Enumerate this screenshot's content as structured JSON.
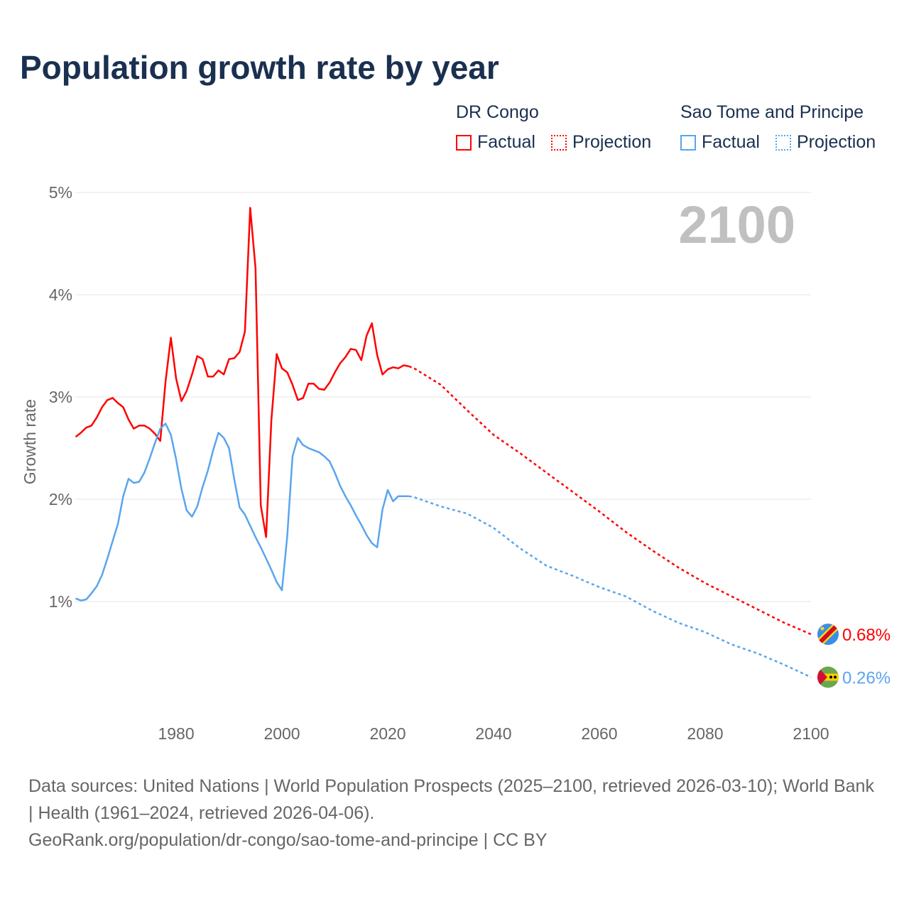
{
  "title": "Population growth rate by year",
  "legend": {
    "groups": [
      {
        "name": "DR Congo",
        "color": "#ff0000",
        "factual": "Factual",
        "projection": "Projection"
      },
      {
        "name": "Sao Tome and Principe",
        "color": "#5aa5ee",
        "factual": "Factual",
        "projection": "Projection"
      }
    ]
  },
  "year_label": "2100",
  "footer": {
    "sources": "Data sources: United Nations | World Population Prospects (2025–2100, retrieved 2026-03-10); World Bank | Health (1961–2024, retrieved 2026-04-06).",
    "link": "GeoRank.org/population/dr-congo/sao-tome-and-principe | CC BY"
  },
  "chart_data": {
    "type": "line",
    "title": "Population growth rate by year",
    "xlabel": "",
    "ylabel": "Growth rate",
    "xlim": [
      1961,
      2100
    ],
    "ylim": [
      0,
      5
    ],
    "x_ticks": [
      "1980",
      "2000",
      "2020",
      "2040",
      "2060",
      "2080",
      "2100"
    ],
    "x_tick_values": [
      1980,
      2000,
      2020,
      2040,
      2060,
      2080,
      2100
    ],
    "y_ticks": [
      "1%",
      "2%",
      "3%",
      "4%",
      "5%"
    ],
    "y_tick_values": [
      1,
      2,
      3,
      4,
      5
    ],
    "grid": true,
    "legend_position": "top-right",
    "series": [
      {
        "name": "DR Congo",
        "color": "#ff0000",
        "end_label": "0.68%",
        "factual": {
          "x_start": 1961,
          "values": [
            2.61,
            2.65,
            2.7,
            2.72,
            2.8,
            2.9,
            2.97,
            2.99,
            2.94,
            2.9,
            2.78,
            2.69,
            2.72,
            2.72,
            2.69,
            2.64,
            2.57,
            3.15,
            3.58,
            3.18,
            2.96,
            3.06,
            3.22,
            3.4,
            3.37,
            3.2,
            3.2,
            3.26,
            3.22,
            3.37,
            3.38,
            3.44,
            3.64,
            4.85,
            4.26,
            1.94,
            1.63,
            2.77,
            3.42,
            3.28,
            3.24,
            3.12,
            2.97,
            2.99,
            3.13,
            3.13,
            3.08,
            3.07,
            3.14,
            3.24,
            3.33,
            3.39,
            3.47,
            3.46,
            3.36,
            3.6,
            3.72,
            3.41,
            3.22,
            3.27,
            3.29,
            3.28,
            3.31,
            3.3
          ]
        },
        "projection": {
          "x": [
            2024,
            2025,
            2030,
            2035,
            2040,
            2045,
            2050,
            2055,
            2060,
            2065,
            2070,
            2075,
            2080,
            2085,
            2090,
            2095,
            2100
          ],
          "values": [
            3.3,
            3.28,
            3.12,
            2.87,
            2.63,
            2.45,
            2.26,
            2.07,
            1.88,
            1.68,
            1.5,
            1.33,
            1.18,
            1.05,
            0.92,
            0.79,
            0.68
          ]
        }
      },
      {
        "name": "Sao Tome and Principe",
        "color": "#5aa5ee",
        "end_label": "0.26%",
        "factual": {
          "x_start": 1961,
          "values": [
            1.03,
            1.01,
            1.02,
            1.08,
            1.15,
            1.26,
            1.42,
            1.59,
            1.76,
            2.03,
            2.2,
            2.16,
            2.17,
            2.26,
            2.4,
            2.55,
            2.69,
            2.74,
            2.63,
            2.39,
            2.1,
            1.89,
            1.83,
            1.93,
            2.12,
            2.28,
            2.48,
            2.65,
            2.6,
            2.5,
            2.19,
            1.92,
            1.85,
            1.74,
            1.63,
            1.53,
            1.42,
            1.31,
            1.19,
            1.11,
            1.64,
            2.42,
            2.6,
            2.53,
            2.5,
            2.48,
            2.46,
            2.42,
            2.37,
            2.26,
            2.13,
            2.03,
            1.94,
            1.84,
            1.75,
            1.65,
            1.57,
            1.53,
            1.9,
            2.09,
            1.98,
            2.03,
            2.03,
            2.03
          ]
        },
        "projection": {
          "x": [
            2024,
            2025,
            2030,
            2035,
            2040,
            2045,
            2050,
            2055,
            2060,
            2065,
            2070,
            2075,
            2080,
            2085,
            2090,
            2095,
            2100
          ],
          "values": [
            2.03,
            2.02,
            1.93,
            1.86,
            1.72,
            1.52,
            1.35,
            1.25,
            1.14,
            1.05,
            0.91,
            0.79,
            0.7,
            0.58,
            0.49,
            0.38,
            0.26
          ]
        }
      }
    ]
  }
}
